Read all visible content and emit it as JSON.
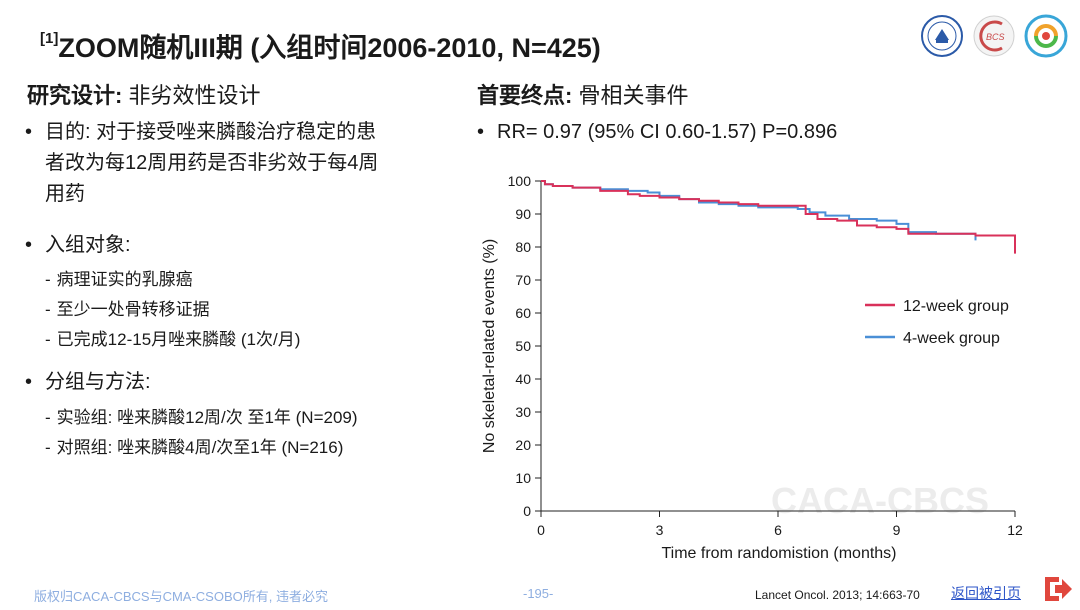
{
  "title": {
    "ref": "[1]",
    "main": "ZOOM随机III期 (入组时间2006-2010, N=425)"
  },
  "left": {
    "heading_bold": "研究设计:",
    "heading_text": " 非劣效性设计",
    "purpose": {
      "label": "目的: ",
      "text_1": "对于接受唑来膦酸治疗稳定的患",
      "text_2": "者改为每12周用药是否非劣效于每4周",
      "text_3": "用药"
    },
    "enroll": {
      "label": "入组对象:",
      "items": [
        "病理证实的乳腺癌",
        "至少一处骨转移证据",
        "已完成12-15月唑来膦酸 (1次/月)"
      ]
    },
    "groups": {
      "label": "分组与方法:",
      "items": [
        "实验组: 唑来膦酸12周/次 至1年 (N=209)",
        "对照组: 唑来膦酸4周/次至1年 (N=216)"
      ]
    }
  },
  "right": {
    "heading_bold": "首要终点:",
    "heading_text": " 骨相关事件",
    "rr": "RR= 0.97 (95% CI 0.60-1.57) P=0.896"
  },
  "chart_data": {
    "type": "line",
    "title": "",
    "xlabel": "Time from randomistion (months)",
    "ylabel": "No skeletal-related events (%)",
    "xlim": [
      0,
      12
    ],
    "ylim": [
      0,
      100
    ],
    "xticks": [
      0,
      3,
      6,
      9,
      12
    ],
    "yticks": [
      0,
      10,
      20,
      30,
      40,
      50,
      60,
      70,
      80,
      90,
      100
    ],
    "legend_position": "right-middle",
    "watermark": "CACA-CBCS",
    "series": [
      {
        "name": "12-week group",
        "color": "#d9315a",
        "x": [
          0,
          0.1,
          0.3,
          0.8,
          1.5,
          2.2,
          2.5,
          3.0,
          3.5,
          4.0,
          4.5,
          5.0,
          5.5,
          6.0,
          6.5,
          6.7,
          7.0,
          7.5,
          8.0,
          8.5,
          9.0,
          9.3,
          10.0,
          11.0,
          12.0,
          12.0
        ],
        "y": [
          100,
          99,
          98.5,
          98,
          97,
          96,
          95.5,
          95,
          94.5,
          94,
          93.5,
          93,
          92.5,
          92.5,
          92.5,
          90,
          88.5,
          88,
          86.5,
          86,
          85.5,
          84,
          84,
          83.5,
          83.5,
          78
        ]
      },
      {
        "name": "4-week group",
        "color": "#4a8fd6",
        "x": [
          0,
          0.1,
          0.3,
          0.8,
          1.5,
          2.2,
          2.7,
          3.0,
          3.5,
          4.0,
          4.5,
          5.0,
          5.5,
          6.0,
          6.5,
          6.8,
          7.2,
          7.8,
          8.5,
          9.0,
          9.3,
          10.0,
          11.0,
          11.0
        ],
        "y": [
          100,
          99,
          98.5,
          98,
          97.5,
          97,
          96.5,
          95.5,
          94.5,
          93.5,
          93,
          92.5,
          92,
          92,
          91.5,
          90.5,
          89.5,
          88.5,
          88,
          87,
          84.5,
          84,
          83.5,
          82
        ]
      }
    ]
  },
  "footer": {
    "copyright": "版权归CACA-CBCS与CMA-CSOBO所有, 违者必究",
    "page": "-195-",
    "reference": "Lancet Oncol. 2013; 14:663-70",
    "back_label": "返回被引页"
  },
  "colors": {
    "link": "#2d55c8",
    "icon_red": "#e0473d",
    "footer_blue": "#8eaee0"
  }
}
